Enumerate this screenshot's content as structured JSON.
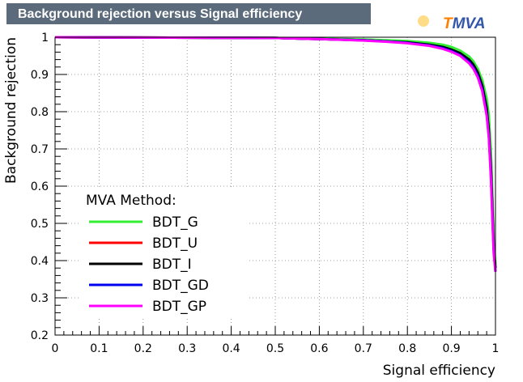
{
  "chart_data": {
    "type": "line",
    "title": "Background rejection versus Signal efficiency",
    "xlabel": "Signal efficiency",
    "ylabel": "Background rejection",
    "xlim": [
      0,
      1
    ],
    "ylim": [
      0.2,
      1
    ],
    "grid": true,
    "legend_placement": "bottom-left",
    "legend_title": "MVA Method:",
    "xticks": [
      "0",
      "0.1",
      "0.2",
      "0.3",
      "0.4",
      "0.5",
      "0.6",
      "0.7",
      "0.8",
      "0.9",
      "1"
    ],
    "yticks": [
      "0.2",
      "0.3",
      "0.4",
      "0.5",
      "0.6",
      "0.7",
      "0.8",
      "0.9",
      "1"
    ],
    "series": [
      {
        "name": "BDT_G",
        "color": "#33ee33",
        "x": [
          0,
          0.5,
          0.6,
          0.7,
          0.75,
          0.8,
          0.85,
          0.88,
          0.9,
          0.92,
          0.94,
          0.95,
          0.96,
          0.97,
          0.98,
          0.985,
          0.99,
          0.993,
          0.996,
          1.0
        ],
        "y": [
          1,
          0.998,
          0.996,
          0.994,
          0.992,
          0.99,
          0.985,
          0.98,
          0.974,
          0.964,
          0.948,
          0.935,
          0.915,
          0.885,
          0.835,
          0.79,
          0.68,
          0.58,
          0.46,
          0.39
        ]
      },
      {
        "name": "BDT_U",
        "color": "#ff0000",
        "x": [
          0,
          0.5,
          0.6,
          0.7,
          0.75,
          0.8,
          0.85,
          0.88,
          0.9,
          0.92,
          0.94,
          0.95,
          0.96,
          0.97,
          0.98,
          0.985,
          0.99,
          0.993,
          0.996,
          1.0
        ],
        "y": [
          1,
          0.998,
          0.995,
          0.992,
          0.989,
          0.985,
          0.979,
          0.972,
          0.965,
          0.954,
          0.936,
          0.922,
          0.9,
          0.865,
          0.8,
          0.74,
          0.63,
          0.53,
          0.43,
          0.38
        ]
      },
      {
        "name": "BDT_I",
        "color": "#000000",
        "x": [
          0,
          0.5,
          0.6,
          0.7,
          0.75,
          0.8,
          0.85,
          0.88,
          0.9,
          0.92,
          0.94,
          0.95,
          0.96,
          0.97,
          0.98,
          0.985,
          0.99,
          0.993,
          0.996,
          1.0
        ],
        "y": [
          1,
          0.998,
          0.995,
          0.992,
          0.989,
          0.986,
          0.98,
          0.974,
          0.967,
          0.957,
          0.94,
          0.926,
          0.905,
          0.87,
          0.81,
          0.75,
          0.64,
          0.54,
          0.44,
          0.38
        ]
      },
      {
        "name": "BDT_GD",
        "color": "#0000ee",
        "x": [
          0,
          0.5,
          0.6,
          0.7,
          0.75,
          0.8,
          0.85,
          0.88,
          0.9,
          0.92,
          0.94,
          0.95,
          0.96,
          0.97,
          0.98,
          0.985,
          0.99,
          0.993,
          0.996,
          1.0
        ],
        "y": [
          1,
          0.998,
          0.995,
          0.992,
          0.989,
          0.985,
          0.978,
          0.971,
          0.963,
          0.952,
          0.934,
          0.919,
          0.897,
          0.86,
          0.795,
          0.735,
          0.62,
          0.52,
          0.43,
          0.37
        ]
      },
      {
        "name": "BDT_GP",
        "color": "#ff00ff",
        "x": [
          0,
          0.5,
          0.6,
          0.7,
          0.75,
          0.8,
          0.85,
          0.88,
          0.9,
          0.92,
          0.94,
          0.95,
          0.96,
          0.97,
          0.98,
          0.985,
          0.99,
          0.993,
          0.996,
          1.0
        ],
        "y": [
          1,
          0.998,
          0.995,
          0.991,
          0.988,
          0.984,
          0.977,
          0.969,
          0.961,
          0.95,
          0.93,
          0.915,
          0.892,
          0.855,
          0.79,
          0.73,
          0.61,
          0.51,
          0.42,
          0.37
        ]
      }
    ]
  },
  "logo": {
    "text": "TMVA",
    "letter_color": "#ff8000",
    "text_color": "#3355aa"
  }
}
